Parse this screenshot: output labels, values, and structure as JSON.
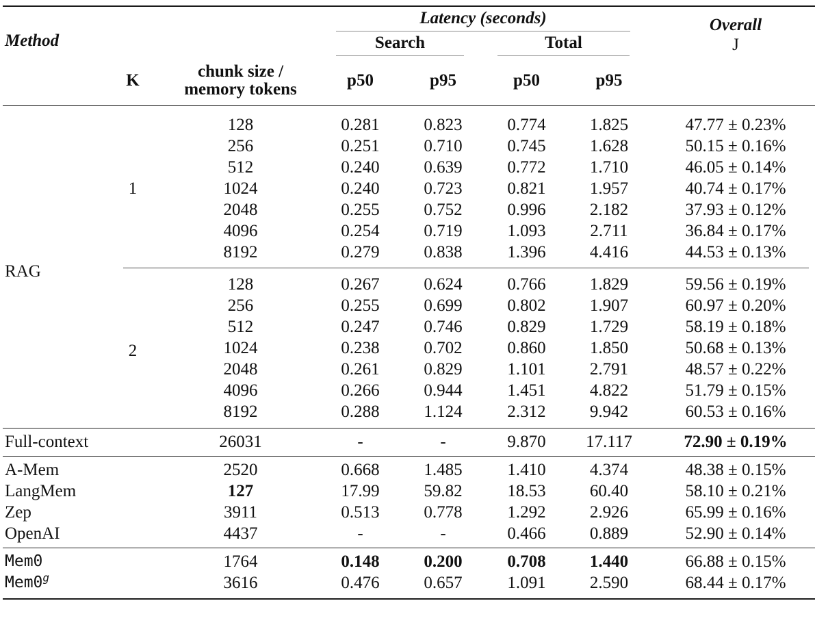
{
  "header": {
    "method": "Method",
    "latency_group": "Latency (seconds)",
    "search_group": "Search",
    "total_group": "Total",
    "overall": "Overall",
    "overall_metric": "J",
    "k": "K",
    "chunk_line1": "chunk size /",
    "chunk_line2": "memory tokens",
    "p50": "p50",
    "p95": "p95"
  },
  "rag": {
    "label": "RAG",
    "k1": "1",
    "k2": "2",
    "k1_rows": [
      {
        "chunk": "128",
        "sp50": "0.281",
        "sp95": "0.823",
        "tp50": "0.774",
        "tp95": "1.825",
        "overall": "47.77 ± 0.23%"
      },
      {
        "chunk": "256",
        "sp50": "0.251",
        "sp95": "0.710",
        "tp50": "0.745",
        "tp95": "1.628",
        "overall": "50.15 ± 0.16%"
      },
      {
        "chunk": "512",
        "sp50": "0.240",
        "sp95": "0.639",
        "tp50": "0.772",
        "tp95": "1.710",
        "overall": "46.05 ± 0.14%"
      },
      {
        "chunk": "1024",
        "sp50": "0.240",
        "sp95": "0.723",
        "tp50": "0.821",
        "tp95": "1.957",
        "overall": "40.74 ± 0.17%"
      },
      {
        "chunk": "2048",
        "sp50": "0.255",
        "sp95": "0.752",
        "tp50": "0.996",
        "tp95": "2.182",
        "overall": "37.93 ± 0.12%"
      },
      {
        "chunk": "4096",
        "sp50": "0.254",
        "sp95": "0.719",
        "tp50": "1.093",
        "tp95": "2.711",
        "overall": "36.84 ± 0.17%"
      },
      {
        "chunk": "8192",
        "sp50": "0.279",
        "sp95": "0.838",
        "tp50": "1.396",
        "tp95": "4.416",
        "overall": "44.53 ± 0.13%"
      }
    ],
    "k2_rows": [
      {
        "chunk": "128",
        "sp50": "0.267",
        "sp95": "0.624",
        "tp50": "0.766",
        "tp95": "1.829",
        "overall": "59.56 ± 0.19%"
      },
      {
        "chunk": "256",
        "sp50": "0.255",
        "sp95": "0.699",
        "tp50": "0.802",
        "tp95": "1.907",
        "overall": "60.97 ± 0.20%"
      },
      {
        "chunk": "512",
        "sp50": "0.247",
        "sp95": "0.746",
        "tp50": "0.829",
        "tp95": "1.729",
        "overall": "58.19 ± 0.18%"
      },
      {
        "chunk": "1024",
        "sp50": "0.238",
        "sp95": "0.702",
        "tp50": "0.860",
        "tp95": "1.850",
        "overall": "50.68 ± 0.13%"
      },
      {
        "chunk": "2048",
        "sp50": "0.261",
        "sp95": "0.829",
        "tp50": "1.101",
        "tp95": "2.791",
        "overall": "48.57 ± 0.22%"
      },
      {
        "chunk": "4096",
        "sp50": "0.266",
        "sp95": "0.944",
        "tp50": "1.451",
        "tp95": "4.822",
        "overall": "51.79 ± 0.15%"
      },
      {
        "chunk": "8192",
        "sp50": "0.288",
        "sp95": "1.124",
        "tp50": "2.312",
        "tp95": "9.942",
        "overall": "60.53 ± 0.16%"
      }
    ]
  },
  "full_context": {
    "label": "Full-context",
    "chunk": "26031",
    "sp50": "-",
    "sp95": "-",
    "tp50": "9.870",
    "tp95": "17.117",
    "overall": "72.90 ± 0.19%"
  },
  "baselines": [
    {
      "label": "A-Mem",
      "chunk": "2520",
      "sp50": "0.668",
      "sp95": "1.485",
      "tp50": "1.410",
      "tp95": "4.374",
      "overall": "48.38 ± 0.15%"
    },
    {
      "label": "LangMem",
      "chunk": "127",
      "sp50": "17.99",
      "sp95": "59.82",
      "tp50": "18.53",
      "tp95": "60.40",
      "overall": "58.10 ± 0.21%"
    },
    {
      "label": "Zep",
      "chunk": "3911",
      "sp50": "0.513",
      "sp95": "0.778",
      "tp50": "1.292",
      "tp95": "2.926",
      "overall": "65.99 ± 0.16%"
    },
    {
      "label": "OpenAI",
      "chunk": "4437",
      "sp50": "-",
      "sp95": "-",
      "tp50": "0.466",
      "tp95": "0.889",
      "overall": "52.90 ± 0.14%"
    }
  ],
  "mem0": {
    "label": "Mem0",
    "chunk": "1764",
    "sp50": "0.148",
    "sp95": "0.200",
    "tp50": "0.708",
    "tp95": "1.440",
    "overall": "66.88 ± 0.15%"
  },
  "mem0g": {
    "label": "Mem0",
    "sup": "g",
    "chunk": "3616",
    "sp50": "0.476",
    "sp95": "0.657",
    "tp50": "1.091",
    "tp95": "2.590",
    "overall": "68.44 ± 0.17%"
  }
}
